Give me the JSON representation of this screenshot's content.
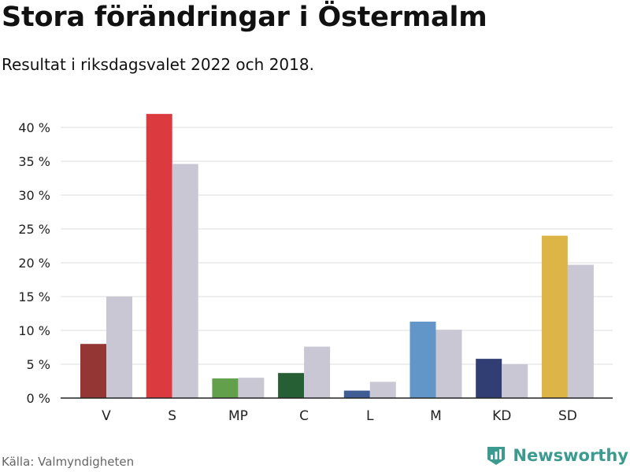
{
  "header": {
    "title": "Stora förändringar i Östermalm",
    "subtitle": "Resultat i riksdagsvalet 2022 och 2018."
  },
  "footer": {
    "source": "Källa: Valmyndigheten",
    "brand": "Newsworthy",
    "brand_icon": "bar-chart-shield-icon",
    "brand_color": "#3b9b90"
  },
  "chart_data": {
    "type": "bar",
    "title": "Stora förändringar i Östermalm",
    "subtitle": "Resultat i riksdagsvalet 2022 och 2018.",
    "xlabel": "",
    "ylabel": "",
    "ylim": [
      0,
      42
    ],
    "yticks": [
      0,
      5,
      10,
      15,
      20,
      25,
      30,
      35,
      40
    ],
    "ytick_suffix": " %",
    "grid": true,
    "legend": "none",
    "categories": [
      "V",
      "S",
      "MP",
      "C",
      "L",
      "M",
      "KD",
      "SD"
    ],
    "series": [
      {
        "values": [
          8.0,
          42.0,
          2.9,
          3.7,
          1.1,
          11.3,
          5.8,
          24.0
        ],
        "colors": [
          "#943634",
          "#db3a3f",
          "#63a04c",
          "#265f34",
          "#3f5d94",
          "#6396c8",
          "#303e74",
          "#ddb446"
        ]
      },
      {
        "values": [
          15.0,
          34.6,
          3.0,
          7.6,
          2.4,
          10.1,
          5.0,
          19.7
        ],
        "color": "#c8c7d3"
      }
    ]
  }
}
